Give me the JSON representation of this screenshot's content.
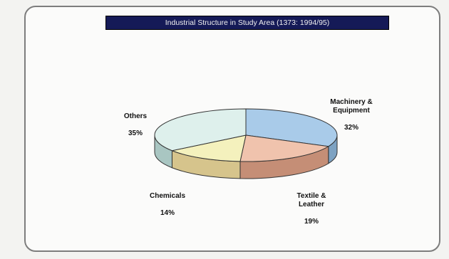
{
  "chart_data": {
    "type": "pie",
    "title": "Industrial Structure in Study Area (1373: 1994/95)",
    "unit": "%",
    "slices": [
      {
        "label": "Machinery & Equipment",
        "display": "Machinery &\nEquipment",
        "value": 32,
        "value_text": "32%",
        "color": "#a9cbe9",
        "side": "#7da2c2"
      },
      {
        "label": "Textile & Leather",
        "display": "Textile &\nLeather",
        "value": 19,
        "value_text": "19%",
        "color": "#f0c3ad",
        "side": "#c58e76"
      },
      {
        "label": "Chemicals",
        "display": "Chemicals",
        "value": 14,
        "value_text": "14%",
        "color": "#f4f1bd",
        "side": "#d6c48c"
      },
      {
        "label": "Others",
        "display": "Others",
        "value": 35,
        "value_text": "35%",
        "color": "#def0ec",
        "side": "#a9c6c2"
      }
    ]
  }
}
